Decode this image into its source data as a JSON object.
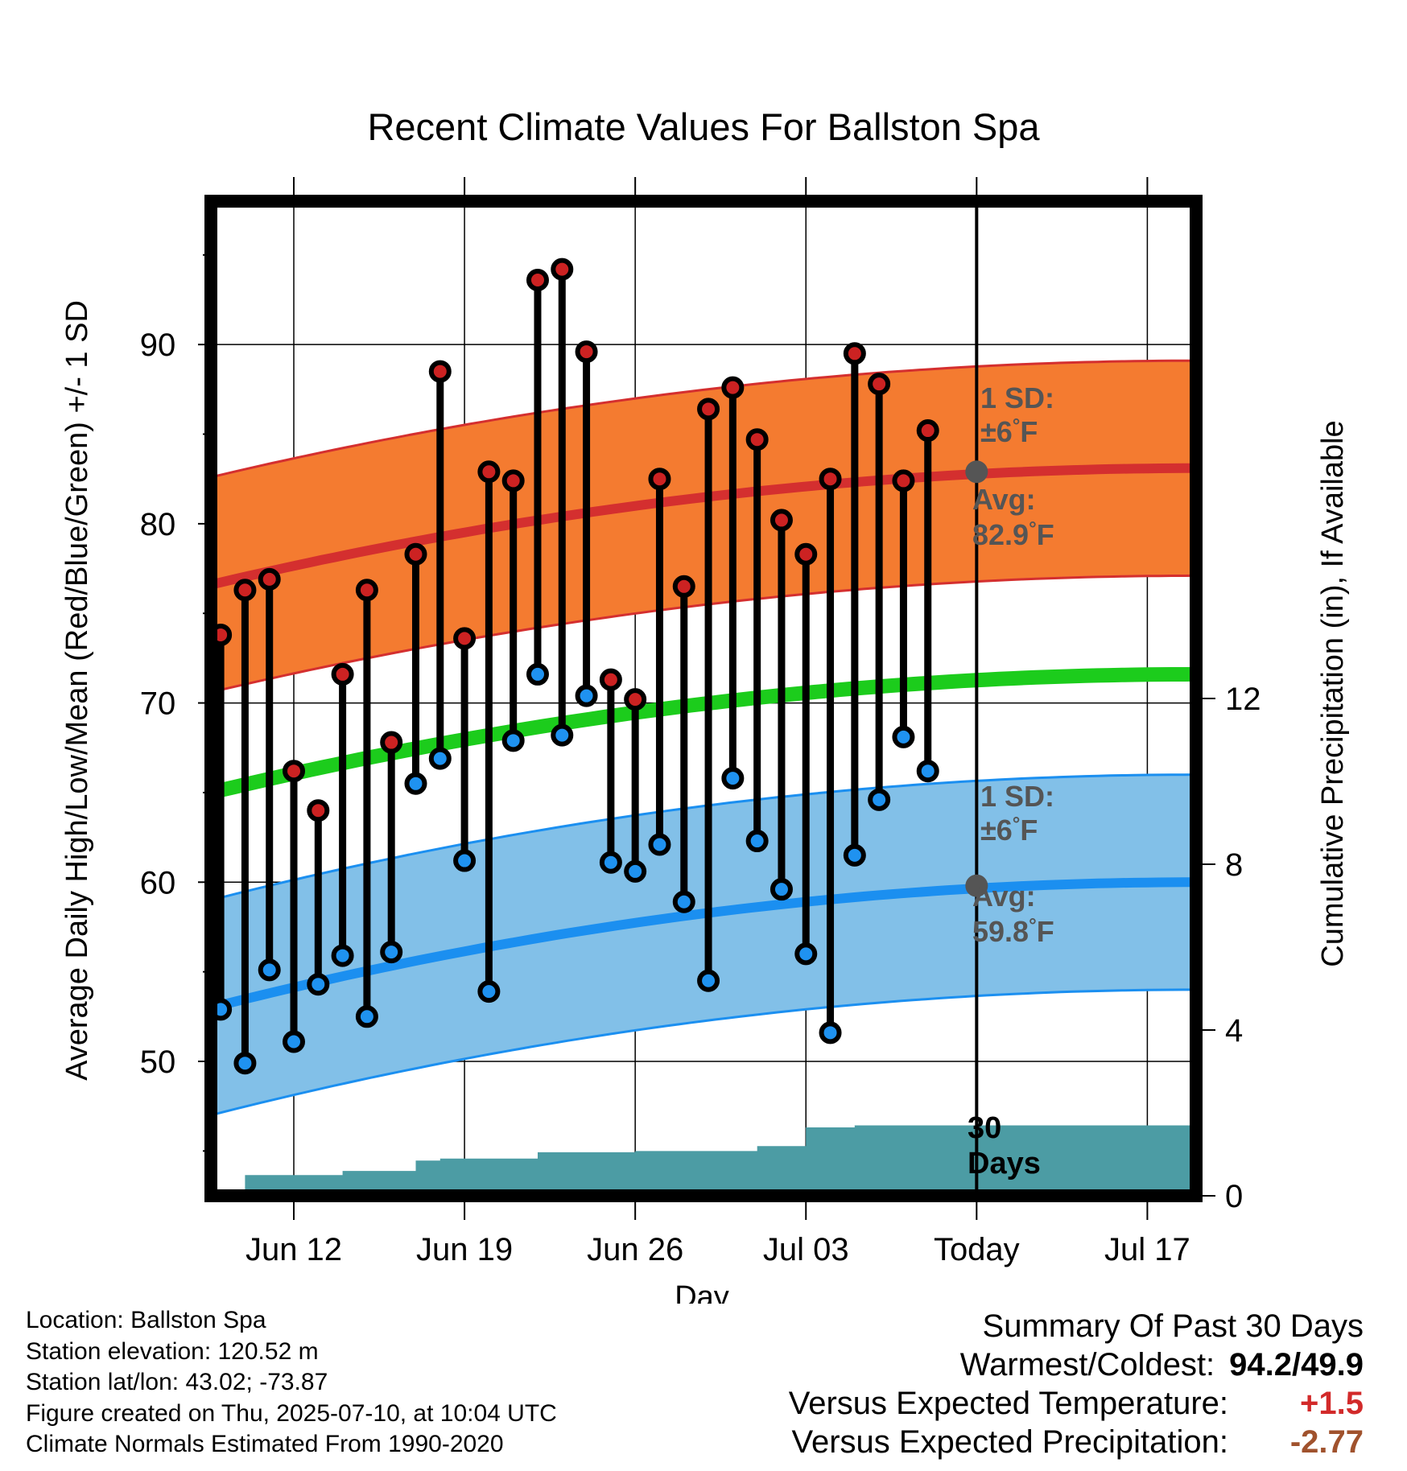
{
  "chart_data": {
    "type": "line",
    "title": "Recent Climate Values For Ballston Spa",
    "xlabel": "Day",
    "ylabel": "Average Daily High/Low/Mean (Red/Blue/Green) +/- 1 SD",
    "y2label": "Cumulative Precipitation (in), If Available",
    "x_tick_labels": [
      "Jun 12",
      "Jun 19",
      "Jun 26",
      "Jul 03",
      "Today",
      "Jul 17"
    ],
    "x_tick_days": [
      12,
      19,
      26,
      33,
      40,
      47
    ],
    "xlim_days": [
      8.6,
      49.0
    ],
    "ylim": [
      42.5,
      98.0
    ],
    "y_ticks": [
      50,
      60,
      70,
      80,
      90
    ],
    "y2lim": [
      0,
      24
    ],
    "y2_ticks": [
      0,
      4,
      8,
      12
    ],
    "today_day": 40,
    "days_observed": [
      9,
      10,
      11,
      12,
      13,
      14,
      15,
      16,
      17,
      18,
      19,
      20,
      21,
      22,
      23,
      24,
      25,
      26,
      27,
      28,
      29,
      30,
      31,
      32,
      33,
      34,
      35,
      36,
      37,
      38
    ],
    "daily_high": [
      73.8,
      76.3,
      76.9,
      66.2,
      64.0,
      71.6,
      76.3,
      67.8,
      78.3,
      88.5,
      73.6,
      82.9,
      82.4,
      93.6,
      94.2,
      89.6,
      71.3,
      70.2,
      82.5,
      76.5,
      86.4,
      87.6,
      84.7,
      80.2,
      78.3,
      82.5,
      89.5,
      87.8,
      82.4,
      85.2
    ],
    "daily_low": [
      52.9,
      49.9,
      55.1,
      51.1,
      54.3,
      55.9,
      52.5,
      56.1,
      65.5,
      66.9,
      61.2,
      53.9,
      67.9,
      71.6,
      68.2,
      70.4,
      61.1,
      60.6,
      62.1,
      58.9,
      54.5,
      65.8,
      62.3,
      59.6,
      56.0,
      51.6,
      61.5,
      64.6,
      68.1,
      66.2
    ],
    "normal_high": {
      "name": "Avg:",
      "value_at_today": "82.9",
      "unit": "°F",
      "start": 76.6,
      "end": 83.1
    },
    "normal_low": {
      "name": "Avg:",
      "value_at_today": "59.8",
      "unit": "°F",
      "start": 53.0,
      "end": 60.0
    },
    "normal_mean": {
      "start": 65.0,
      "end": 71.6
    },
    "sd_high": {
      "label": "1 SD:",
      "text": "±6",
      "unit": "°F",
      "value": 6
    },
    "sd_low": {
      "label": "1 SD:",
      "text": "±6",
      "unit": "°F",
      "value": 6
    },
    "precip_days": [
      9,
      10,
      11,
      12,
      13,
      14,
      15,
      16,
      17,
      18,
      19,
      20,
      21,
      22,
      23,
      24,
      25,
      26,
      27,
      28,
      29,
      30,
      31,
      32,
      33,
      34,
      35,
      36,
      49
    ],
    "precip_cumulative": [
      0.0,
      0.5,
      0.5,
      0.5,
      0.5,
      0.6,
      0.6,
      0.6,
      0.85,
      0.9,
      0.9,
      0.9,
      0.9,
      1.05,
      1.05,
      1.05,
      1.05,
      1.08,
      1.08,
      1.08,
      1.08,
      1.08,
      1.2,
      1.2,
      1.65,
      1.65,
      1.7,
      1.7,
      1.7
    ],
    "days_label": [
      "30",
      "Days"
    ],
    "colors": {
      "high_band": "#f47b30",
      "high_line": "#d42f2f",
      "low_band": "#82c0e8",
      "low_line": "#1b8ff0",
      "mean_line": "#1ccc1c",
      "precip": "#4c9ca4",
      "high_dot": "#cc2222",
      "low_dot": "#1f92f0",
      "today_dot": "#555555",
      "warm_text": "#d22a2a",
      "precip_text": "#a0522d"
    }
  },
  "info": {
    "location": "Location: Ballston Spa",
    "elevation": "Station elevation: 120.52 m",
    "latlon": "Station lat/lon: 43.02; -73.87",
    "created": "Figure created on Thu, 2025-07-10, at 10:04 UTC",
    "normals": "Climate Normals Estimated From 1990-2020"
  },
  "summary": {
    "title": "Summary Of Past 30 Days",
    "warmest_label": "Warmest/Coldest:",
    "warmest_value": "94.2/49.9",
    "temp_label": "Versus Expected Temperature:",
    "temp_value": "+1.5",
    "precip_label": "Versus Expected Precipitation:",
    "precip_value": "-2.77"
  }
}
